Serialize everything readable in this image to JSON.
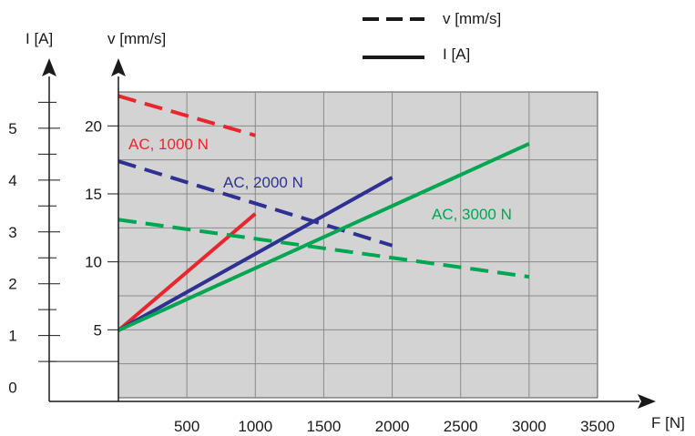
{
  "chart_data": {
    "type": "line",
    "x_axis": {
      "label": "F [N]",
      "ticks": [
        500,
        1000,
        1500,
        2000,
        2500,
        3000,
        3500
      ],
      "range": [
        0,
        3500
      ]
    },
    "y_axis_velocity": {
      "label": "v [mm/s]",
      "ticks": [
        5,
        10,
        15,
        20
      ],
      "range": [
        0,
        22.5
      ]
    },
    "y_axis_current": {
      "label": "I [A]",
      "ticks": [
        0,
        1,
        2,
        3,
        4,
        5
      ],
      "range": [
        -0.2,
        5.7
      ]
    },
    "grid": true,
    "legend": {
      "position": "top-right",
      "items": [
        {
          "label": "v [mm/s]",
          "style": "dashed"
        },
        {
          "label": "I [A]",
          "style": "solid"
        }
      ]
    },
    "series": [
      {
        "label": "AC, 1000 N",
        "color": "#e8262d",
        "velocity": {
          "x": [
            0,
            1000
          ],
          "y": [
            22.2,
            19.3
          ]
        },
        "current": {
          "x": [
            0,
            1000
          ],
          "y": [
            1.1,
            3.35
          ]
        }
      },
      {
        "label": "AC, 2000 N",
        "color": "#2e3192",
        "velocity": {
          "x": [
            0,
            2000
          ],
          "y": [
            17.4,
            11.2
          ]
        },
        "current": {
          "x": [
            0,
            2000
          ],
          "y": [
            1.1,
            4.05
          ]
        }
      },
      {
        "label": "AC, 3000 N",
        "color": "#00a651",
        "velocity": {
          "x": [
            0,
            3000
          ],
          "y": [
            13.1,
            8.9
          ]
        },
        "current": {
          "x": [
            0,
            3000
          ],
          "y": [
            1.1,
            4.7
          ]
        }
      }
    ]
  }
}
